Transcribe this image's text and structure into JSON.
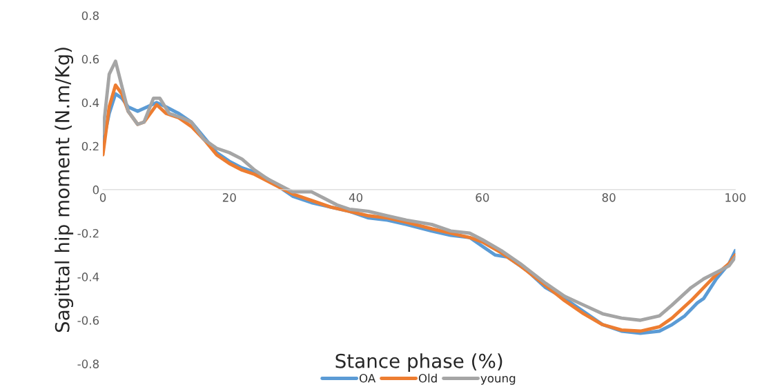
{
  "chart_data": {
    "type": "line",
    "xlabel": "Stance phase (%)",
    "ylabel": "Sagittal hip moment (N.m/Kg)",
    "xlim": [
      0,
      100
    ],
    "xticks": [
      0,
      20,
      40,
      60,
      80,
      100
    ],
    "ylim": [
      -0.8,
      0.8
    ],
    "yticks": [
      -0.8,
      -0.6,
      -0.4,
      -0.2,
      0,
      0.2,
      0.4,
      0.6,
      0.8
    ],
    "grid": false,
    "legend": "bottom",
    "marker": "none",
    "line_style": "solid",
    "series": [
      {
        "name": "OA",
        "color": "#5b9bd5",
        "x": [
          0,
          1,
          2,
          3,
          4,
          5.5,
          7,
          8.5,
          10,
          12,
          14,
          16,
          18,
          20,
          22,
          24,
          26,
          28,
          30,
          33,
          36,
          39,
          42,
          45,
          48,
          52,
          55,
          58,
          60,
          62,
          64,
          67,
          70,
          73,
          76,
          79,
          82,
          85,
          88,
          90,
          92,
          94,
          95,
          97,
          99,
          100
        ],
        "values": [
          0.21,
          0.35,
          0.44,
          0.42,
          0.38,
          0.36,
          0.38,
          0.4,
          0.38,
          0.35,
          0.31,
          0.24,
          0.17,
          0.13,
          0.1,
          0.08,
          0.05,
          0.01,
          -0.03,
          -0.06,
          -0.08,
          -0.1,
          -0.13,
          -0.14,
          -0.16,
          -0.19,
          -0.21,
          -0.22,
          -0.26,
          -0.3,
          -0.31,
          -0.37,
          -0.45,
          -0.5,
          -0.56,
          -0.62,
          -0.65,
          -0.66,
          -0.65,
          -0.62,
          -0.58,
          -0.52,
          -0.5,
          -0.41,
          -0.34,
          -0.28
        ]
      },
      {
        "name": "Old",
        "color": "#ed7d31",
        "x": [
          0,
          1,
          2,
          3,
          4,
          5.5,
          6.5,
          8.5,
          10,
          12,
          14,
          16,
          18,
          20,
          22,
          24,
          26,
          28,
          30,
          33,
          36,
          39,
          42,
          45,
          48,
          52,
          55,
          58,
          60,
          63,
          66,
          70,
          73,
          76,
          79,
          82,
          85,
          88,
          90,
          93,
          95,
          97,
          99,
          100
        ],
        "values": [
          0.16,
          0.38,
          0.48,
          0.44,
          0.36,
          0.3,
          0.31,
          0.39,
          0.35,
          0.33,
          0.29,
          0.23,
          0.16,
          0.12,
          0.09,
          0.07,
          0.04,
          0.01,
          -0.02,
          -0.05,
          -0.08,
          -0.1,
          -0.12,
          -0.13,
          -0.15,
          -0.18,
          -0.2,
          -0.22,
          -0.24,
          -0.29,
          -0.35,
          -0.44,
          -0.51,
          -0.57,
          -0.62,
          -0.645,
          -0.65,
          -0.63,
          -0.59,
          -0.51,
          -0.45,
          -0.39,
          -0.34,
          -0.3
        ]
      },
      {
        "name": "young",
        "color": "#a5a5a5",
        "x": [
          0,
          1,
          2,
          4,
          5.5,
          6.5,
          8,
          9,
          10.5,
          12.5,
          14,
          16,
          18,
          20,
          22,
          24,
          26,
          28,
          30,
          33,
          35,
          37,
          39,
          42,
          45,
          48,
          52,
          55,
          58,
          60,
          63,
          66,
          70,
          73,
          76,
          79,
          82,
          85,
          88,
          90,
          93,
          95,
          97,
          99,
          100
        ],
        "values": [
          0.26,
          0.53,
          0.59,
          0.36,
          0.3,
          0.31,
          0.42,
          0.42,
          0.35,
          0.33,
          0.31,
          0.23,
          0.19,
          0.17,
          0.14,
          0.09,
          0.05,
          0.02,
          -0.01,
          -0.01,
          -0.04,
          -0.07,
          -0.09,
          -0.1,
          -0.12,
          -0.14,
          -0.16,
          -0.19,
          -0.2,
          -0.23,
          -0.28,
          -0.34,
          -0.43,
          -0.49,
          -0.53,
          -0.57,
          -0.59,
          -0.6,
          -0.58,
          -0.53,
          -0.45,
          -0.41,
          -0.38,
          -0.35,
          -0.31
        ]
      }
    ]
  }
}
